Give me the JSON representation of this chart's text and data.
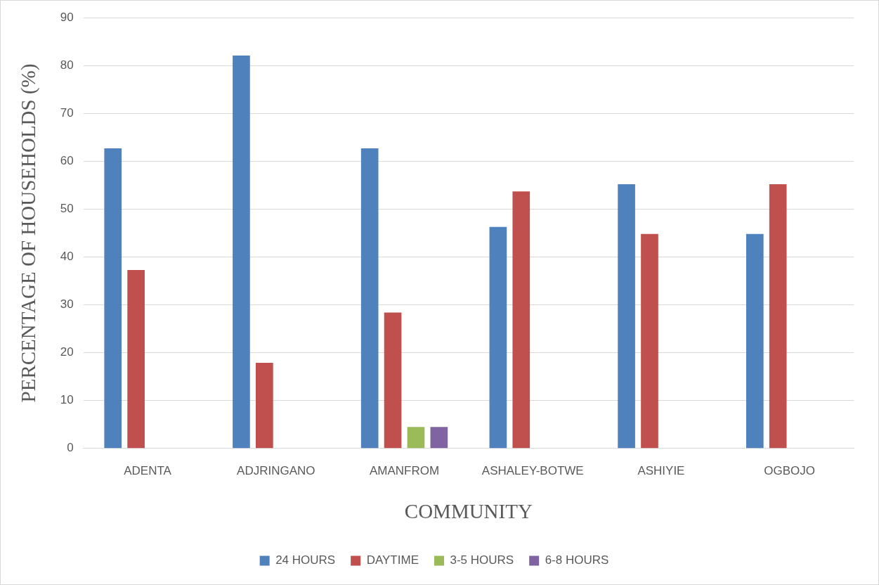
{
  "chart_data": {
    "type": "bar",
    "xlabel": "COMMUNITY",
    "ylabel": "PERCENTAGE OF HOUSEHOLDS (%)",
    "categories": [
      "ADENTA",
      "ADJRINGANO",
      "AMANFROM",
      "ASHALEY-BOTWE",
      "ASHIYIE",
      "OGBOJO"
    ],
    "series": [
      {
        "name": "24 HOURS",
        "color": "#4f81bd",
        "values": [
          62.7,
          82.1,
          62.7,
          46.3,
          55.2,
          44.8
        ]
      },
      {
        "name": "DAYTIME",
        "color": "#c0504d",
        "values": [
          37.3,
          17.9,
          28.4,
          53.7,
          44.8,
          55.2
        ]
      },
      {
        "name": "3-5 HOURS",
        "color": "#9bbb59",
        "values": [
          null,
          null,
          4.5,
          null,
          null,
          null
        ]
      },
      {
        "name": "6-8 HOURS",
        "color": "#8064a2",
        "values": [
          null,
          null,
          4.5,
          null,
          null,
          null
        ]
      }
    ],
    "ylim": [
      0,
      90
    ],
    "yticks": [
      0,
      10,
      20,
      30,
      40,
      50,
      60,
      70,
      80,
      90
    ],
    "grid": "y",
    "legend": "bottom"
  }
}
